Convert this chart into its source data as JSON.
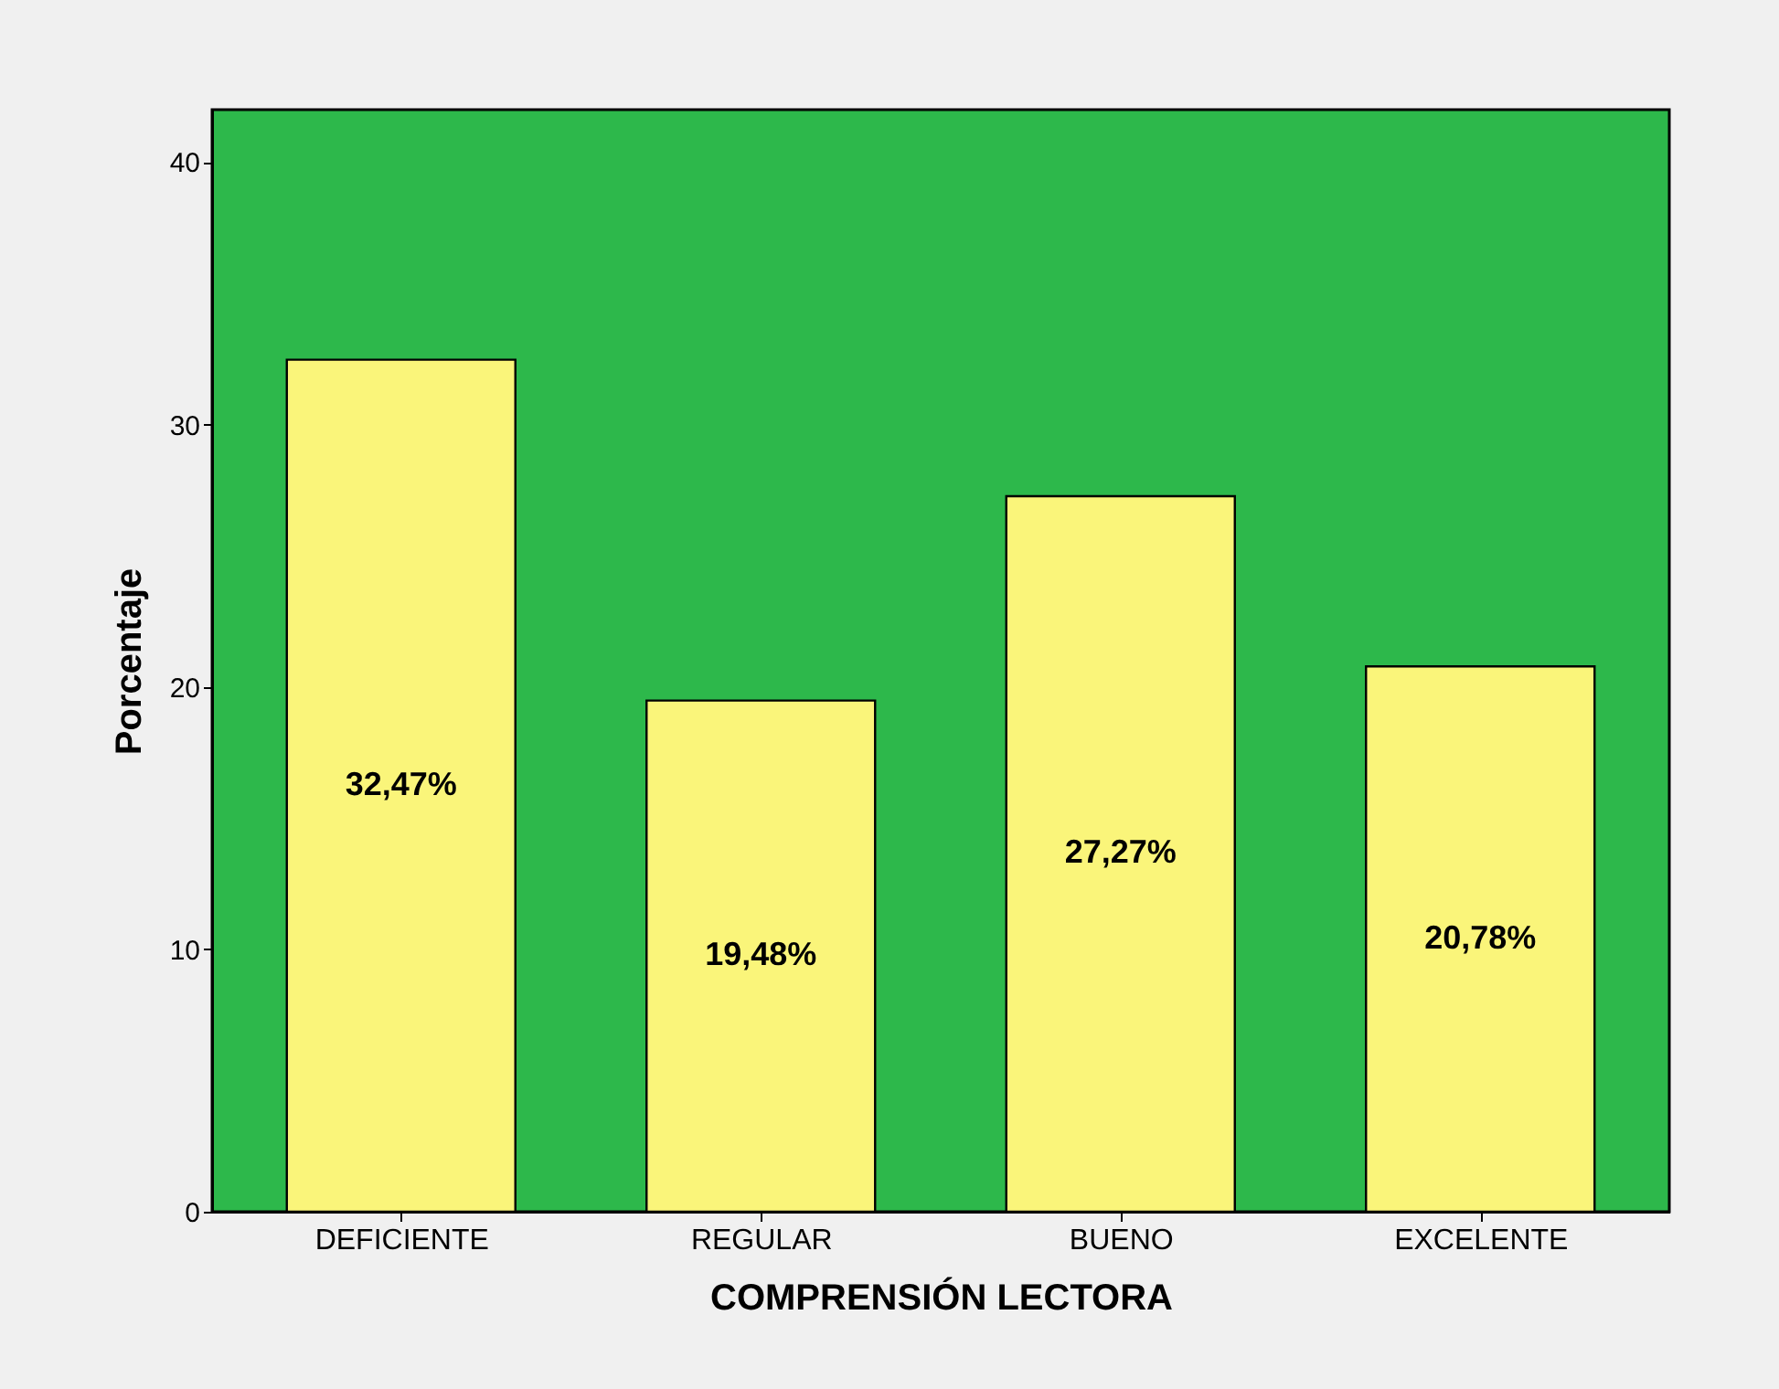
{
  "chart_data": {
    "type": "bar",
    "xlabel": "COMPRENSIÓN LECTORA",
    "ylabel": "Porcentaje",
    "categories": [
      "DEFICIENTE",
      "REGULAR",
      "BUENO",
      "EXCELENTE"
    ],
    "values": [
      32.47,
      19.48,
      27.27,
      20.78
    ],
    "value_labels": [
      "32,47%",
      "19,48%",
      "27,27%",
      "20,78%"
    ],
    "color": "#faf57a",
    "ylim": [
      0,
      42
    ],
    "yticks": [
      0,
      10,
      20,
      30,
      40
    ],
    "grid": false
  }
}
